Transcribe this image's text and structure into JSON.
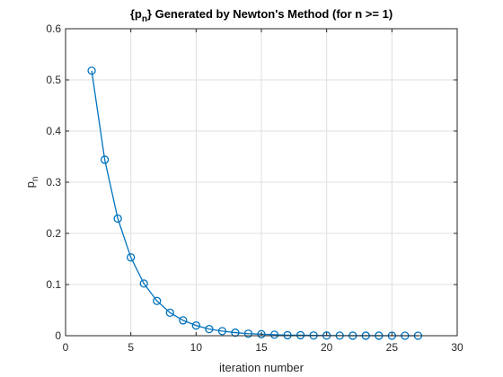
{
  "chart_data": {
    "type": "line",
    "title": {
      "prefix": "{p",
      "sub": "n",
      "suffix": "} Generated by Newton's Method (for n >= 1)"
    },
    "xlabel": "iteration number",
    "ylabel": {
      "main": "p",
      "sub": "n"
    },
    "xlim": [
      0,
      30
    ],
    "ylim": [
      0,
      0.6
    ],
    "xticks": [
      0,
      5,
      10,
      15,
      20,
      25,
      30
    ],
    "yticks": [
      0,
      0.1,
      0.2,
      0.3,
      0.4,
      0.5,
      0.6
    ],
    "xtick_labels": [
      "0",
      "5",
      "10",
      "15",
      "20",
      "25",
      "30"
    ],
    "ytick_labels": [
      "0",
      "0.1",
      "0.2",
      "0.3",
      "0.4",
      "0.5",
      "0.6"
    ],
    "grid": true,
    "marker": "circle",
    "line_color": "#0072BD",
    "series": [
      {
        "x": [
          2,
          3,
          4,
          5,
          6,
          7,
          8,
          9,
          10,
          11,
          12,
          13,
          14,
          15,
          16,
          17,
          18,
          19,
          20,
          21,
          22,
          23,
          24,
          25,
          26,
          27
        ],
        "values": [
          0.518,
          0.344,
          0.229,
          0.153,
          0.102,
          0.068,
          0.045,
          0.03,
          0.02,
          0.013,
          0.009,
          0.006,
          0.004,
          0.003,
          0.002,
          0.001,
          0.001,
          0.0005,
          0.0003,
          0.0002,
          0.0001,
          0.0001,
          0.0001,
          0.0,
          0.0,
          0.0
        ]
      }
    ]
  }
}
